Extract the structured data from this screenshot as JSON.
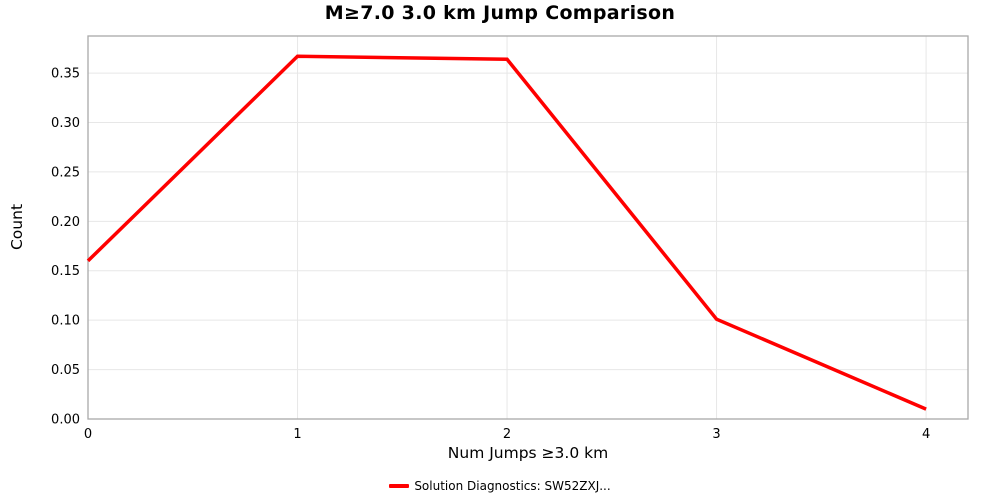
{
  "chart_data": {
    "type": "line",
    "title": "M≥7.0 3.0 km Jump Comparison",
    "xlabel": "Num Jumps ≥3.0 km",
    "ylabel": "Count",
    "x": [
      0,
      1,
      2,
      3,
      4
    ],
    "series": [
      {
        "name": "Solution Diagnostics: SW52ZXJ...",
        "color": "#ff0000",
        "values": [
          0.16,
          0.367,
          0.364,
          0.101,
          0.01
        ]
      }
    ],
    "xlim": [
      0,
      4.2
    ],
    "ylim": [
      0,
      0.3875
    ],
    "xticks": {
      "values": [
        0,
        1,
        2,
        3,
        4
      ],
      "labels": [
        "0",
        "1",
        "2",
        "3",
        "4"
      ]
    },
    "yticks": {
      "values": [
        0.0,
        0.05,
        0.1,
        0.15,
        0.2,
        0.25,
        0.3,
        0.35
      ],
      "labels": [
        "0.00",
        "0.05",
        "0.10",
        "0.15",
        "0.20",
        "0.25",
        "0.30",
        "0.35"
      ]
    },
    "grid": true,
    "legend_position": "bottom-center",
    "colors": {
      "grid": "#e7e7e7",
      "spine": "#a9a9a9",
      "text": "#000000",
      "background": "#ffffff"
    }
  }
}
